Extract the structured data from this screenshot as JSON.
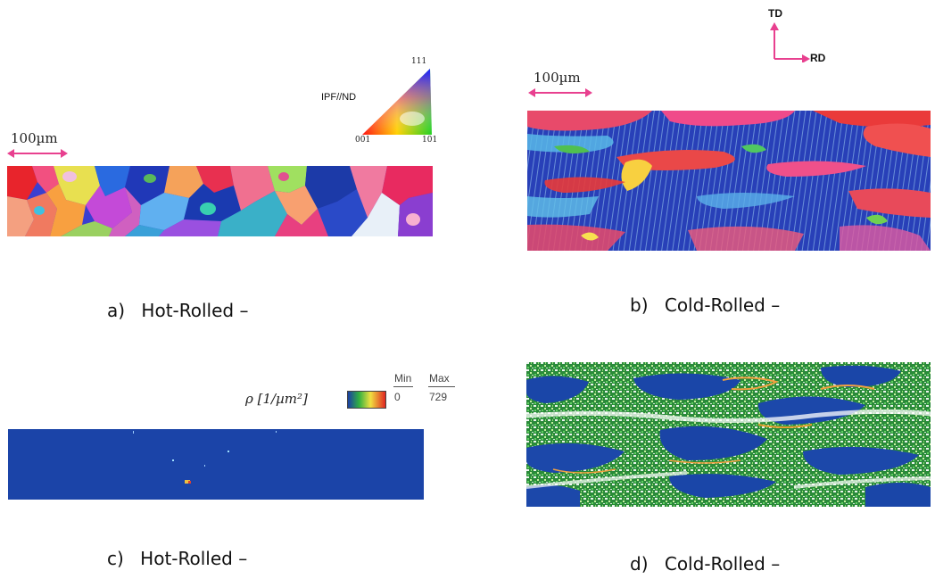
{
  "scale_bars": {
    "a": "100µm",
    "b": "100µm"
  },
  "ipf_key": {
    "title": "IPF//ND",
    "corner_111": "111",
    "corner_001": "001",
    "corner_101": "101"
  },
  "axes": {
    "td": "TD",
    "rd": "RD",
    "color": "#e8408f"
  },
  "density_legend": {
    "label": "ρ [1/µm²]",
    "min_header": "Min",
    "min_value": "0",
    "max_header": "Max",
    "max_value": "729"
  },
  "captions": {
    "a_letter": "a)",
    "a_text": "Hot-Rolled –",
    "b_letter": "b)",
    "b_text": "Cold-Rolled –",
    "c_letter": "c)",
    "c_text": "Hot-Rolled –",
    "d_letter": "d)",
    "d_text": "Cold-Rolled –"
  }
}
